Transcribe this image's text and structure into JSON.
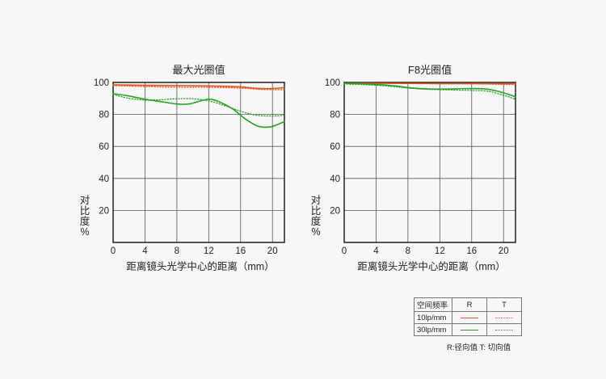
{
  "colors": {
    "r10": "#e8531f",
    "t10": "#e8531f",
    "r30": "#27a322",
    "t30": "#27a322",
    "grid": "#555555",
    "frame": "#111111"
  },
  "chart_data": [
    {
      "type": "line",
      "title": "最大光圈值",
      "xlabel": "距离镜头光学中心的距离（mm）",
      "ylabel": "对比度%",
      "xlim": [
        0,
        21.5
      ],
      "ylim": [
        0,
        100
      ],
      "xticks": [
        "0",
        "4",
        "8",
        "12",
        "16",
        "20"
      ],
      "yticks": [
        "20",
        "40",
        "60",
        "80",
        "100"
      ],
      "grid": true,
      "series": [
        {
          "key": "r10",
          "style": "solid",
          "x": [
            0,
            4,
            8,
            12,
            16,
            18,
            20,
            21.5
          ],
          "y": [
            98.5,
            98.2,
            98,
            97.8,
            97.2,
            96.3,
            96.2,
            96.8
          ]
        },
        {
          "key": "t10",
          "style": "dotted",
          "x": [
            0,
            4,
            8,
            12,
            16,
            18,
            20,
            21.5
          ],
          "y": [
            98,
            97.5,
            97,
            97,
            96.5,
            95.8,
            95.5,
            95.5
          ]
        },
        {
          "key": "r30",
          "style": "solid",
          "x": [
            0,
            2,
            4,
            6,
            8,
            9.5,
            11,
            12,
            13,
            15,
            16.5,
            18,
            19,
            20,
            21.5
          ],
          "y": [
            93,
            91.5,
            89.5,
            88,
            86.5,
            86.5,
            88.5,
            89.5,
            88.5,
            83.5,
            77.5,
            73,
            72,
            72.5,
            75.5
          ]
        },
        {
          "key": "t30",
          "style": "dotted",
          "x": [
            0,
            2,
            4,
            6,
            8,
            10,
            12,
            14,
            16,
            18,
            20,
            21.5
          ],
          "y": [
            92.5,
            90,
            89,
            89.2,
            89.8,
            89.8,
            88.5,
            85.5,
            82,
            79.5,
            79,
            79.5
          ]
        }
      ]
    },
    {
      "type": "line",
      "title": "F8光圈值",
      "xlabel": "距离镜头光学中心的距离（mm）",
      "ylabel": "对比度%",
      "xlim": [
        0,
        21.5
      ],
      "ylim": [
        0,
        100
      ],
      "xticks": [
        "0",
        "4",
        "8",
        "12",
        "16",
        "20"
      ],
      "yticks": [
        "20",
        "40",
        "60",
        "80",
        "100"
      ],
      "grid": true,
      "series": [
        {
          "key": "r10",
          "style": "solid",
          "x": [
            0,
            4,
            8,
            12,
            16,
            20,
            21.5
          ],
          "y": [
            99.5,
            99.5,
            99.4,
            99.3,
            99.2,
            99.2,
            99.2
          ]
        },
        {
          "key": "t10",
          "style": "dotted",
          "x": [
            0,
            4,
            8,
            12,
            16,
            20,
            21.5
          ],
          "y": [
            99.5,
            99.4,
            99.3,
            99.2,
            99.2,
            98.8,
            98.8
          ]
        },
        {
          "key": "r30",
          "style": "solid",
          "x": [
            0,
            3,
            6,
            8,
            10,
            12,
            14,
            16,
            18,
            20,
            21.5
          ],
          "y": [
            99.5,
            99,
            98,
            96.8,
            96,
            95.8,
            96,
            96.2,
            95.8,
            93.5,
            91
          ]
        },
        {
          "key": "t30",
          "style": "dotted",
          "x": [
            0,
            3,
            6,
            8,
            10,
            12,
            14,
            16,
            18,
            20,
            21.5
          ],
          "y": [
            99,
            98.5,
            97.5,
            96.5,
            95.8,
            95.5,
            95.2,
            95,
            94.5,
            92,
            89.5
          ]
        }
      ]
    }
  ],
  "legend": {
    "header": "空间频率",
    "col_r": "R",
    "col_t": "T",
    "row_10": "10lp/mm",
    "row_30": "30lp/mm",
    "note": "R:径向值  T:  切向值"
  }
}
